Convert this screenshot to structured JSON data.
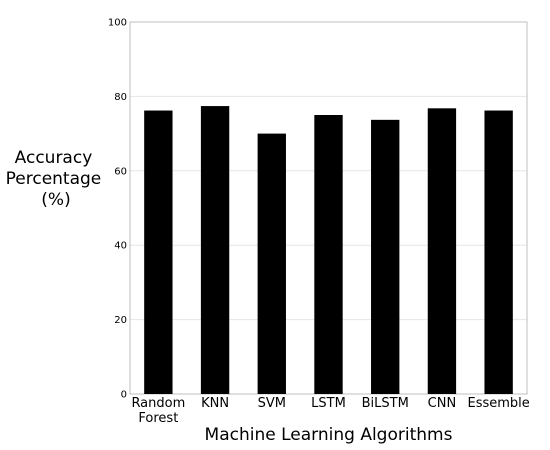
{
  "chart_data": {
    "type": "bar",
    "categories": [
      "Random Forest",
      "KNN",
      "SVM",
      "LSTM",
      "BiLSTM",
      "CNN",
      "Essemble"
    ],
    "values": [
      76.2,
      77.4,
      70.0,
      75.0,
      73.7,
      76.8,
      76.2
    ],
    "xlabel": "Machine Learning Algorithms",
    "ylabel_lines": [
      "Accuracy",
      "Percentage",
      "(%)"
    ],
    "ylim": [
      0,
      100
    ],
    "yticks": [
      0,
      20,
      40,
      60,
      80,
      100
    ],
    "grid": "horizontal",
    "colors": {
      "bar": "#000000",
      "grid": "#e6e6e6",
      "axis": "#bfbfbf"
    }
  }
}
